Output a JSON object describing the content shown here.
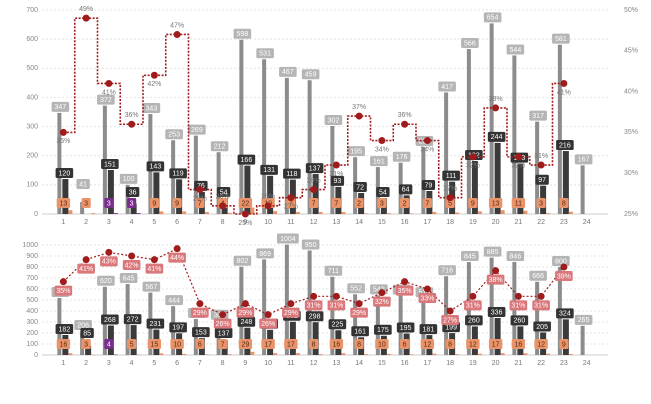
{
  "chart_data": [
    {
      "type": "bar",
      "step": true,
      "label_box": false,
      "grid": true,
      "categories": [
        "1",
        "2",
        "3",
        "4",
        "5",
        "6",
        "7",
        "8",
        "9",
        "10",
        "11",
        "12",
        "13",
        "14",
        "15",
        "16",
        "17",
        "18",
        "19",
        "20",
        "21",
        "22",
        "23",
        "24"
      ],
      "ylim": [
        0,
        700
      ],
      "yticks": [
        0,
        100,
        200,
        300,
        400,
        500,
        600,
        700
      ],
      "y2lim": [
        25,
        50
      ],
      "y2ticks": [
        {
          "value": 25,
          "label": "25%"
        },
        {
          "value": 30,
          "label": "30%"
        },
        {
          "value": 35,
          "label": "35%"
        },
        {
          "value": 40,
          "label": "40%"
        },
        {
          "value": 45,
          "label": "45%"
        },
        {
          "value": 50,
          "label": "50%"
        }
      ],
      "series": [
        {
          "color": "#8c8c8c",
          "values": [
            347,
            41,
            372,
            100,
            343,
            253,
            269,
            212,
            598,
            531,
            467,
            459,
            302,
            195,
            161,
            176,
            230,
            417,
            566,
            654,
            544,
            317,
            581,
            167
          ]
        },
        {
          "color": "#3a3a3a",
          "values": [
            120,
            null,
            151,
            36,
            143,
            119,
            76,
            54,
            166,
            131,
            118,
            137,
            93,
            72,
            54,
            64,
            79,
            111,
            182,
            244,
            173,
            97,
            216,
            null
          ]
        },
        {
          "color": "#e8936a",
          "values": [
            13,
            3,
            null,
            null,
            9,
            9,
            7,
            4,
            22,
            10,
            7,
            7,
            7,
            2,
            3,
            2,
            7,
            5,
            9,
            13,
            11,
            3,
            8,
            null
          ]
        },
        {
          "color": "#7b2d8e",
          "values": [
            null,
            null,
            3,
            3,
            null,
            null,
            null,
            null,
            null,
            null,
            null,
            null,
            null,
            null,
            null,
            null,
            null,
            null,
            null,
            null,
            null,
            null,
            null,
            null
          ]
        },
        {
          "color": "#a01c1c",
          "axis": "y2",
          "values": [
            35,
            49,
            41,
            36,
            42,
            47,
            28,
            26,
            25,
            26,
            27,
            28,
            31,
            37,
            34,
            36,
            34,
            27,
            32,
            38,
            32,
            31,
            41,
            null
          ],
          "value_labels": [
            "35%",
            "49%",
            "41%",
            "36%",
            "42%",
            "47%",
            "28%",
            "26%",
            "25%",
            "26%",
            "27%",
            "28%",
            "31%",
            "37%",
            "34%",
            "36%",
            "34%",
            "27%",
            "32%",
            "38%",
            "32%",
            "31%",
            "41%",
            null
          ]
        }
      ]
    },
    {
      "type": "bar",
      "step": false,
      "label_box": true,
      "grid": true,
      "categories": [
        "1",
        "2",
        "3",
        "4",
        "5",
        "6",
        "7",
        "8",
        "9",
        "10",
        "11",
        "12",
        "13",
        "14",
        "15",
        "16",
        "17",
        "18",
        "19",
        "20",
        "21",
        "22",
        "23",
        "24"
      ],
      "ylim": [
        0,
        1000
      ],
      "yticks": [
        0,
        100,
        200,
        300,
        400,
        500,
        600,
        700,
        800,
        900,
        1000
      ],
      "y2lim": [
        15,
        45
      ],
      "series": [
        {
          "color": "#8c8c8c",
          "values": [
            518,
            206,
            620,
            645,
            567,
            444,
            327,
            311,
            802,
            869,
            1004,
            950,
            711,
            552,
            542,
            540,
            516,
            716,
            845,
            885,
            846,
            666,
            800,
            265
          ]
        },
        {
          "color": "#3a3a3a",
          "values": [
            182,
            85,
            268,
            272,
            231,
            197,
            153,
            137,
            248,
            229,
            302,
            298,
            225,
            161,
            175,
            195,
            181,
            199,
            260,
            336,
            260,
            205,
            324,
            null
          ]
        },
        {
          "color": "#e8936a",
          "values": [
            16,
            3,
            null,
            5,
            15,
            10,
            6,
            7,
            29,
            17,
            17,
            8,
            16,
            8,
            10,
            6,
            12,
            8,
            12,
            17,
            16,
            12,
            9,
            null
          ]
        },
        {
          "color": "#7b2d8e",
          "values": [
            null,
            null,
            4,
            null,
            null,
            null,
            null,
            null,
            null,
            null,
            null,
            null,
            null,
            null,
            null,
            null,
            null,
            null,
            null,
            null,
            null,
            null,
            null,
            null
          ]
        },
        {
          "color": "#a01c1c",
          "axis": "y2",
          "values": [
            35,
            41,
            43,
            42,
            41,
            44,
            29,
            26,
            29,
            26,
            29,
            31,
            31,
            29,
            32,
            35,
            33,
            27,
            31,
            38,
            31,
            31,
            39,
            null
          ],
          "value_labels": [
            "35%",
            "41%",
            "43%",
            "42%",
            "41%",
            "44%",
            "29%",
            "26%",
            "29%",
            "26%",
            "29%",
            "31%",
            "31%",
            "29%",
            "32%",
            "35%",
            "33%",
            "27%",
            "31%",
            "38%",
            "31%",
            "31%",
            "39%",
            null
          ]
        }
      ]
    }
  ]
}
